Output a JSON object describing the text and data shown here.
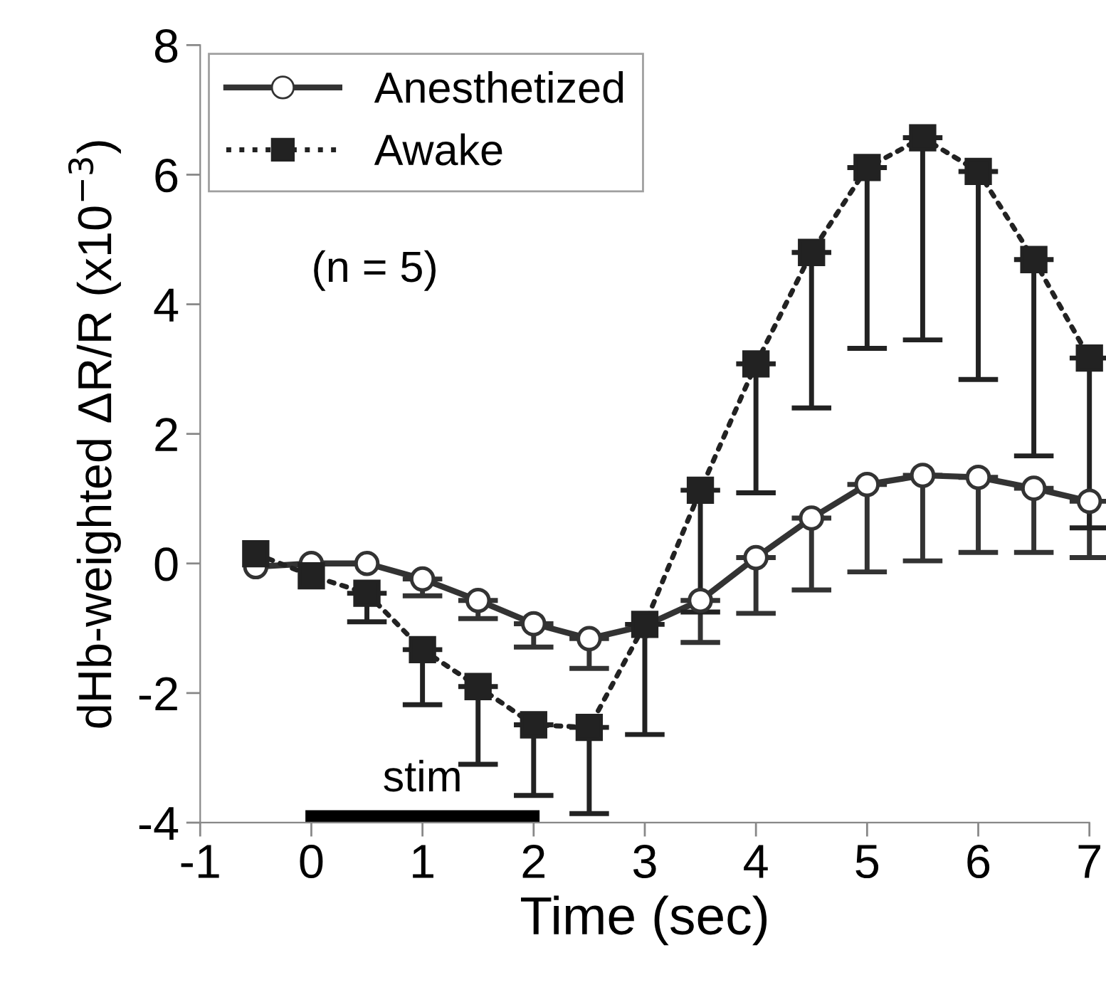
{
  "chart_data": {
    "type": "line",
    "xlabel": "Time (sec)",
    "ylabel": "dHb-weighted ΔR/R (x10$^{−3}$)",
    "x": [
      -0.5,
      0,
      0.5,
      1,
      1.5,
      2,
      2.5,
      3,
      3.5,
      4,
      4.5,
      5,
      5.5,
      6,
      6.5,
      7
    ],
    "series": [
      {
        "name": "Anesthetized",
        "color": "#333333",
        "marker": "circle",
        "line_style": "solid",
        "values": [
          -0.05,
          0,
          0,
          -0.24,
          -0.57,
          -0.93,
          -1.16,
          -0.96,
          -0.57,
          0.09,
          0.7,
          1.22,
          1.36,
          1.33,
          1.16,
          0.96
        ],
        "errors": [
          null,
          null,
          null,
          [
            -0.5,
            -0.24
          ],
          [
            -0.85,
            -0.57
          ],
          [
            -1.29,
            -0.93
          ],
          [
            -1.62,
            -1.16
          ],
          null,
          [
            -1.22,
            -0.57
          ],
          [
            -0.77,
            0.09
          ],
          [
            -0.41,
            0.7
          ],
          [
            -0.13,
            1.22
          ],
          [
            0.04,
            1.36
          ],
          [
            0.17,
            1.33
          ],
          [
            0.17,
            1.16
          ],
          [
            0.09,
            0.96
          ]
        ]
      },
      {
        "name": "Awake",
        "color": "#222222",
        "marker": "square",
        "line_style": "dotted",
        "values": [
          0.15,
          -0.19,
          -0.46,
          -1.33,
          -1.9,
          -2.49,
          -2.53,
          -0.94,
          1.13,
          3.08,
          4.8,
          6.11,
          6.57,
          6.05,
          4.69,
          3.17
        ],
        "errors": [
          null,
          null,
          [
            -0.9,
            -0.46
          ],
          [
            -2.18,
            -1.33
          ],
          [
            -3.1,
            -1.9
          ],
          [
            -3.58,
            -2.49
          ],
          [
            -3.86,
            -2.53
          ],
          [
            -2.64,
            -0.94
          ],
          [
            -0.75,
            1.13
          ],
          [
            1.09,
            3.08
          ],
          [
            2.4,
            4.8
          ],
          [
            3.32,
            6.11
          ],
          [
            3.45,
            6.57
          ],
          [
            2.84,
            6.05
          ],
          [
            1.66,
            4.69
          ],
          [
            0.55,
            3.17
          ]
        ]
      },
      {
        "type": "line",
        "color": "#000000",
        "marker": "none",
        "line_style": "solid",
        "x": [
          0,
          2
        ],
        "values": [
          -3.9,
          -3.9
        ]
      }
    ],
    "xlim": [
      -1,
      7
    ],
    "xticks": [
      -1,
      0,
      1,
      2,
      3,
      4,
      5,
      6,
      7
    ],
    "ylim": [
      -4,
      8
    ],
    "yticks": [
      -4,
      -2,
      0,
      2,
      4,
      6,
      8
    ],
    "annotations": [
      "(n = 5)",
      {
        "text": "stim",
        "x": 1,
        "y": -3.9
      }
    ],
    "legend": "top left",
    "grid": false
  }
}
